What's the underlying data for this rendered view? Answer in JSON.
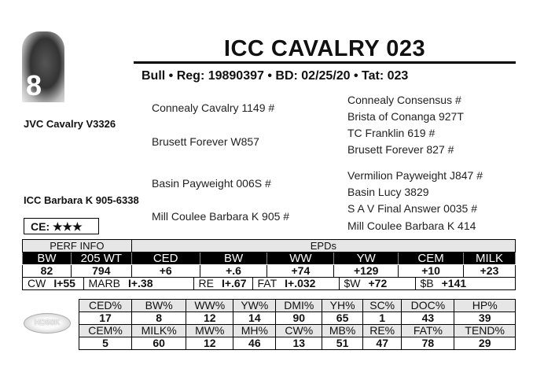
{
  "lot_number": "8",
  "title": "ICC CAVALRY 023",
  "subtitle": "Bull • Reg: 19890397 • BD: 02/25/20 • Tat: 023",
  "pedigree": {
    "sire": "JVC Cavalry V3326",
    "dam": "ICC Barbara K 905-6338",
    "sire_sire": "Connealy Cavalry 1149 #",
    "sire_dam": "Brusett Forever W857",
    "dam_sire": "Basin Payweight 006S #",
    "dam_dam": "Mill Coulee Barbara K 905 #",
    "ss_sire": "Connealy Consensus #",
    "ss_dam": "Brista of Conanga 927T",
    "sd_sire": "TC Franklin 619 #",
    "sd_dam": "Brusett Forever 827 #",
    "ds_sire": "Vermilion Payweight J847 #",
    "ds_dam": "Basin Lucy 3829",
    "dd_sire": "S A V Final Answer 0035 #",
    "dd_dam": "Mill Coulee Barbara K 414"
  },
  "ce": "CE: ★★★",
  "perf": {
    "header": "PERF INFO",
    "epd_header": "EPDs",
    "labels": [
      "BW",
      "205 WT",
      "CED",
      "BW",
      "WW",
      "YW",
      "CEM",
      "MILK"
    ],
    "values": [
      "82",
      "794",
      "+6",
      "+.6",
      "+74",
      "+129",
      "+10",
      "+23"
    ],
    "carcass": [
      [
        "CW",
        "I+55"
      ],
      [
        "MARB",
        "I+.38"
      ],
      [
        "RE",
        "I+.67"
      ],
      [
        "FAT",
        "I+.032"
      ],
      [
        "$W",
        "+72"
      ],
      [
        "$B",
        "+141"
      ]
    ]
  },
  "logo": "HD50K",
  "percentiles": {
    "row1_labels": [
      "CED%",
      "BW%",
      "WW%",
      "YW%",
      "DMI%",
      "YH%",
      "SC%",
      "DOC%",
      "HP%"
    ],
    "row1_values": [
      "17",
      "8",
      "12",
      "14",
      "90",
      "65",
      "1",
      "43",
      "39"
    ],
    "row2_labels": [
      "CEM%",
      "MILK%",
      "MW%",
      "MH%",
      "CW%",
      "MB%",
      "RE%",
      "FAT%",
      "TEND%"
    ],
    "row2_values": [
      "5",
      "60",
      "12",
      "46",
      "13",
      "51",
      "47",
      "78",
      "29"
    ]
  }
}
